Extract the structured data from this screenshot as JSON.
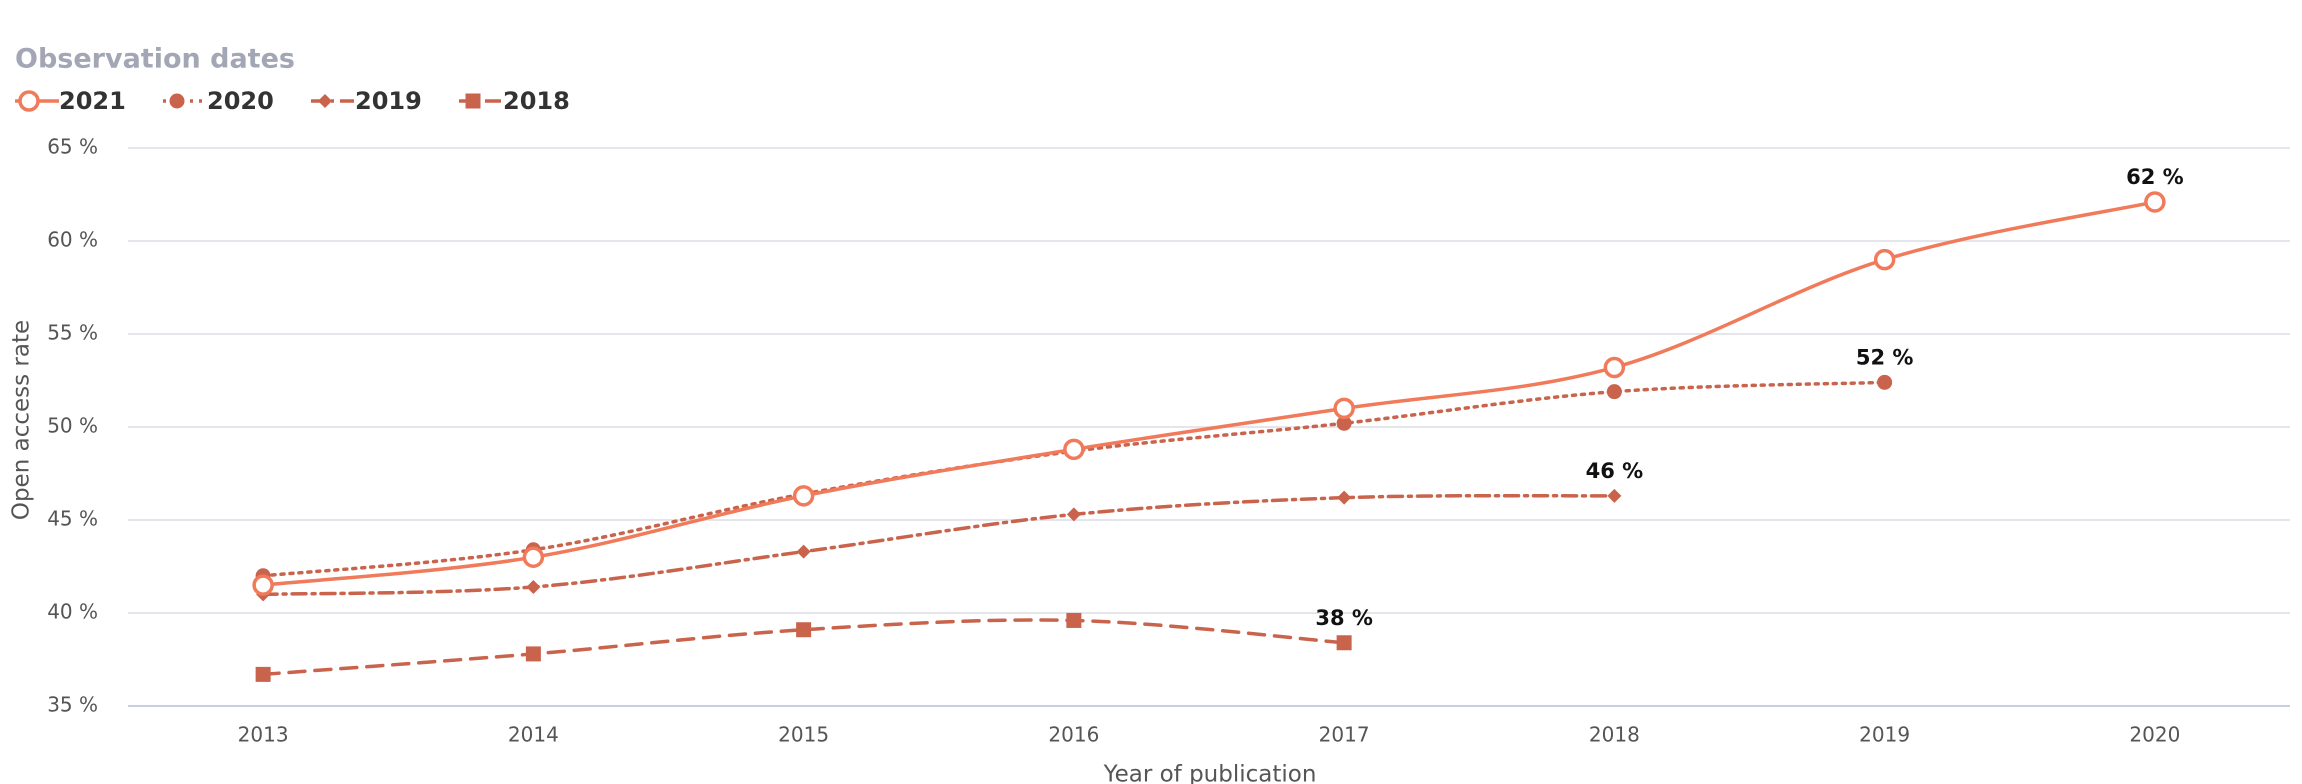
{
  "chart_data": {
    "type": "line",
    "legend_title": "Observation dates",
    "x_label": "Year of publication",
    "y_label": "Open access rate",
    "categories": [
      "2013",
      "2014",
      "2015",
      "2016",
      "2017",
      "2018",
      "2019",
      "2020"
    ],
    "ylim": [
      35,
      65
    ],
    "yticks": [
      {
        "value": 35,
        "label": "35 %"
      },
      {
        "value": 40,
        "label": "40 %"
      },
      {
        "value": 45,
        "label": "45 %"
      },
      {
        "value": 50,
        "label": "50 %"
      },
      {
        "value": 55,
        "label": "55 %"
      },
      {
        "value": 60,
        "label": "60 %"
      },
      {
        "value": 65,
        "label": "65 %"
      }
    ],
    "grid": true,
    "series": [
      {
        "name": "2021",
        "color": "#f07a5a",
        "marker": "hollow-circle",
        "dash": "solid",
        "values": [
          41.5,
          43.0,
          46.3,
          48.8,
          51.0,
          53.2,
          59.0,
          62.1
        ],
        "value_labels": [
          null,
          null,
          null,
          null,
          null,
          null,
          null,
          "62 %"
        ]
      },
      {
        "name": "2020",
        "color": "#c9634c",
        "marker": "circle",
        "dash": "dotted",
        "values": [
          42.0,
          43.4,
          46.4,
          48.7,
          50.2,
          51.9,
          52.4,
          null
        ],
        "value_labels": [
          null,
          null,
          null,
          null,
          null,
          null,
          "52 %",
          null
        ]
      },
      {
        "name": "2019",
        "color": "#c9634c",
        "marker": "diamond",
        "dash": "dashdot",
        "values": [
          41.0,
          41.4,
          43.3,
          45.3,
          46.2,
          46.3,
          null,
          null
        ],
        "value_labels": [
          null,
          null,
          null,
          null,
          null,
          "46 %",
          null,
          null
        ]
      },
      {
        "name": "2018",
        "color": "#c9634c",
        "marker": "square",
        "dash": "dashed",
        "values": [
          36.7,
          37.8,
          39.1,
          39.6,
          38.4,
          null,
          null,
          null
        ],
        "value_labels": [
          null,
          null,
          null,
          null,
          "38 %",
          null,
          null,
          null
        ]
      }
    ]
  }
}
